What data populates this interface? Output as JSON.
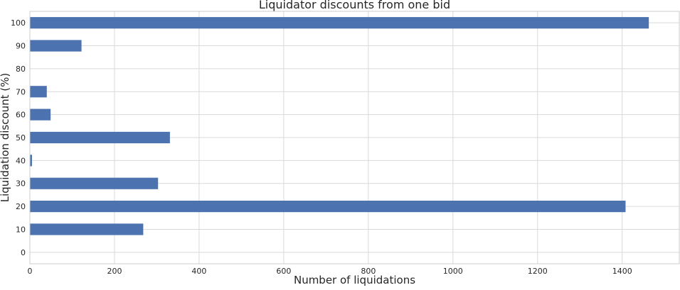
{
  "chart_data": {
    "type": "bar",
    "orientation": "horizontal",
    "title": "Liquidator discounts from one bid",
    "xlabel": "Number of liquidations",
    "ylabel": "Liquidation discount (%)",
    "categories": [
      "0",
      "10",
      "20",
      "30",
      "40",
      "50",
      "60",
      "70",
      "80",
      "90",
      "100"
    ],
    "values": [
      0,
      268,
      1408,
      303,
      5,
      331,
      49,
      40,
      0,
      122,
      1463
    ],
    "xlim": [
      0,
      1535
    ],
    "xticks": [
      "0",
      "200",
      "400",
      "600",
      "800",
      "1000",
      "1200",
      "1400"
    ],
    "grid": true,
    "bar_color": "#4c72b0"
  }
}
